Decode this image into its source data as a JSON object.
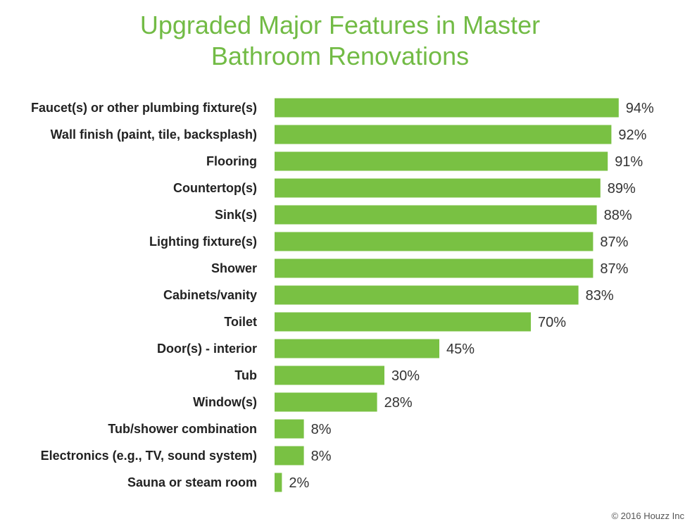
{
  "chart_data": {
    "type": "bar",
    "orientation": "horizontal",
    "title_lines": [
      "Upgraded Major Features in Master",
      "Bathroom Renovations"
    ],
    "categories": [
      "Faucet(s) or other plumbing fixture(s)",
      "Wall finish (paint, tile, backsplash)",
      "Flooring",
      "Countertop(s)",
      "Sink(s)",
      "Lighting fixture(s)",
      "Shower",
      "Cabinets/vanity",
      "Toilet",
      "Door(s) - interior",
      "Tub",
      "Window(s)",
      "Tub/shower combination",
      "Electronics (e.g., TV, sound system)",
      "Sauna or steam room"
    ],
    "values": [
      94,
      92,
      91,
      89,
      88,
      87,
      87,
      83,
      70,
      45,
      30,
      28,
      8,
      8,
      2
    ],
    "value_suffix": "%",
    "xlim": [
      0,
      100
    ],
    "grid": false,
    "legend": "none",
    "bar_color": "#79c143",
    "title_color": "#72bb45"
  },
  "footer": {
    "copyright": "© 2016 Houzz Inc"
  }
}
